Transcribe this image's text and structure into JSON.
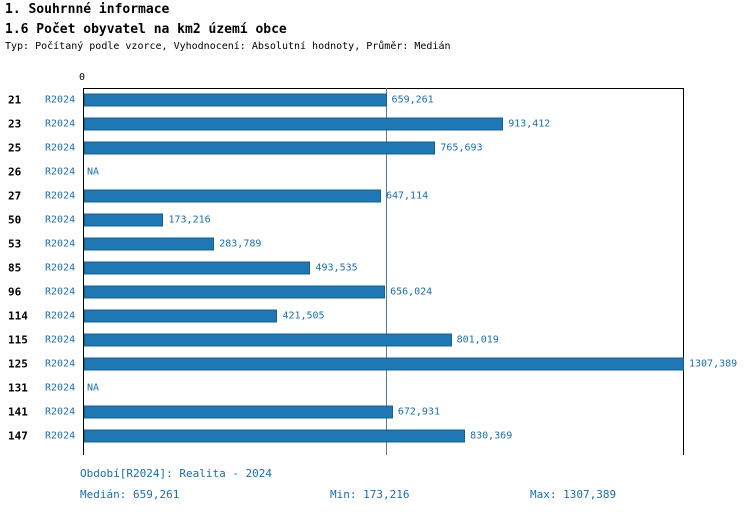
{
  "header": {
    "title1": "1. Souhrnné informace",
    "title2": "1.6 Počet obyvatel na km2 území obce",
    "subtitle": "Typ: Počítaný podle vzorce, Vyhodnocení: Absolutní hodnoty, Průměr: Medián"
  },
  "chart_data": {
    "type": "bar",
    "orientation": "horizontal",
    "title": "1.6 Počet obyvatel na km2 území obce",
    "series_label": "R2024",
    "axis_origin_label": "0",
    "categories": [
      "21",
      "23",
      "25",
      "26",
      "27",
      "50",
      "53",
      "85",
      "96",
      "114",
      "115",
      "125",
      "131",
      "141",
      "147"
    ],
    "values": [
      659.261,
      913.412,
      765.693,
      null,
      647.114,
      173.216,
      283.789,
      493.535,
      656.024,
      421.505,
      801.019,
      1307.389,
      null,
      672.931,
      830.369
    ],
    "value_labels": [
      "659,261",
      "913,412",
      "765,693",
      "NA",
      "647,114",
      "173,216",
      "283,789",
      "493,535",
      "656,024",
      "421,505",
      "801,019",
      "1307,389",
      "NA",
      "672,931",
      "830,369"
    ],
    "xlim": [
      0,
      1307.389
    ],
    "median": 659.261,
    "min": 173.216,
    "max": 1307.389,
    "grid": false,
    "legend_position": "none",
    "bar_color": "#1f77b4",
    "bar_border_color": "#16608f",
    "label_color": "#1b6ea8"
  },
  "footer": {
    "period": "Období[R2024]: Realita - 2024",
    "median": "Medián: 659,261",
    "min": "Min: 173,216",
    "max": "Max: 1307,389"
  }
}
